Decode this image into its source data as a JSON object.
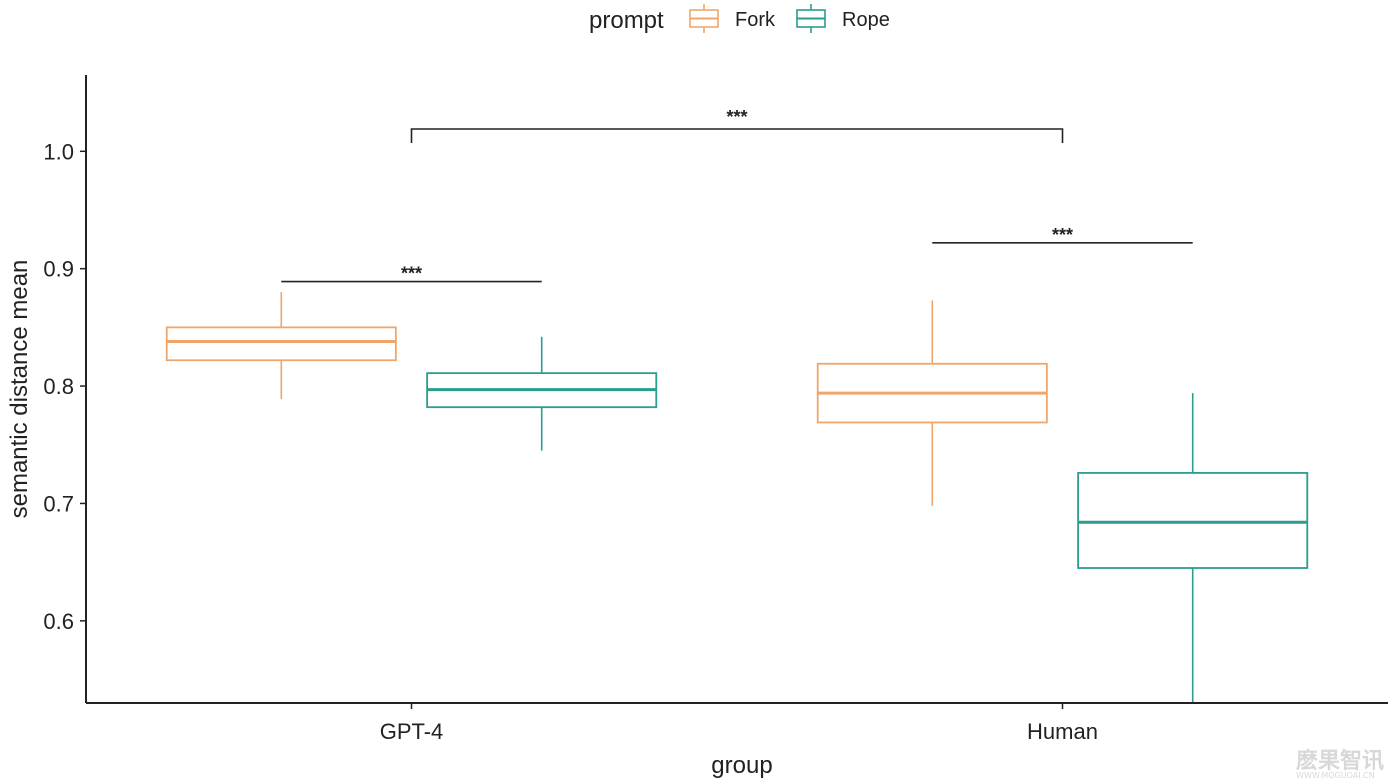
{
  "chart_data": {
    "type": "boxplot",
    "title": "",
    "xlabel": "group",
    "ylabel": "semantic distance mean",
    "ylim": [
      0.53,
      1.065
    ],
    "yticks": [
      0.6,
      0.7,
      0.8,
      0.9,
      1.0
    ],
    "ytick_labels": [
      "0.6",
      "0.7",
      "0.8",
      "0.9",
      "1.0"
    ],
    "categories": [
      "GPT-4",
      "Human"
    ],
    "legend": {
      "title": "prompt",
      "placement": "top"
    },
    "series": [
      {
        "name": "Fork",
        "color": "#f0a66a",
        "boxes": [
          {
            "category": "GPT-4",
            "whisker_low": 0.789,
            "q1": 0.822,
            "median": 0.838,
            "q3": 0.85,
            "whisker_high": 0.88
          },
          {
            "category": "Human",
            "whisker_low": 0.698,
            "q1": 0.769,
            "median": 0.794,
            "q3": 0.819,
            "whisker_high": 0.873
          }
        ]
      },
      {
        "name": "Rope",
        "color": "#2a9d8f",
        "boxes": [
          {
            "category": "GPT-4",
            "whisker_low": 0.745,
            "q1": 0.782,
            "median": 0.797,
            "q3": 0.811,
            "whisker_high": 0.842
          },
          {
            "category": "Human",
            "whisker_low": 0.53,
            "q1": 0.645,
            "median": 0.684,
            "q3": 0.726,
            "whisker_high": 0.794
          }
        ]
      }
    ],
    "annotations": [
      {
        "label": "***",
        "type": "group-bracket",
        "from": "GPT-4",
        "to": "Human",
        "y": 1.019
      },
      {
        "label": "***",
        "type": "within-group",
        "group": "GPT-4",
        "y": 0.889
      },
      {
        "label": "***",
        "type": "within-group",
        "group": "Human",
        "y": 0.922
      }
    ]
  },
  "watermark": {
    "text": "麽果智讯",
    "subtext": "WWW.MOGUOAI.CN"
  }
}
